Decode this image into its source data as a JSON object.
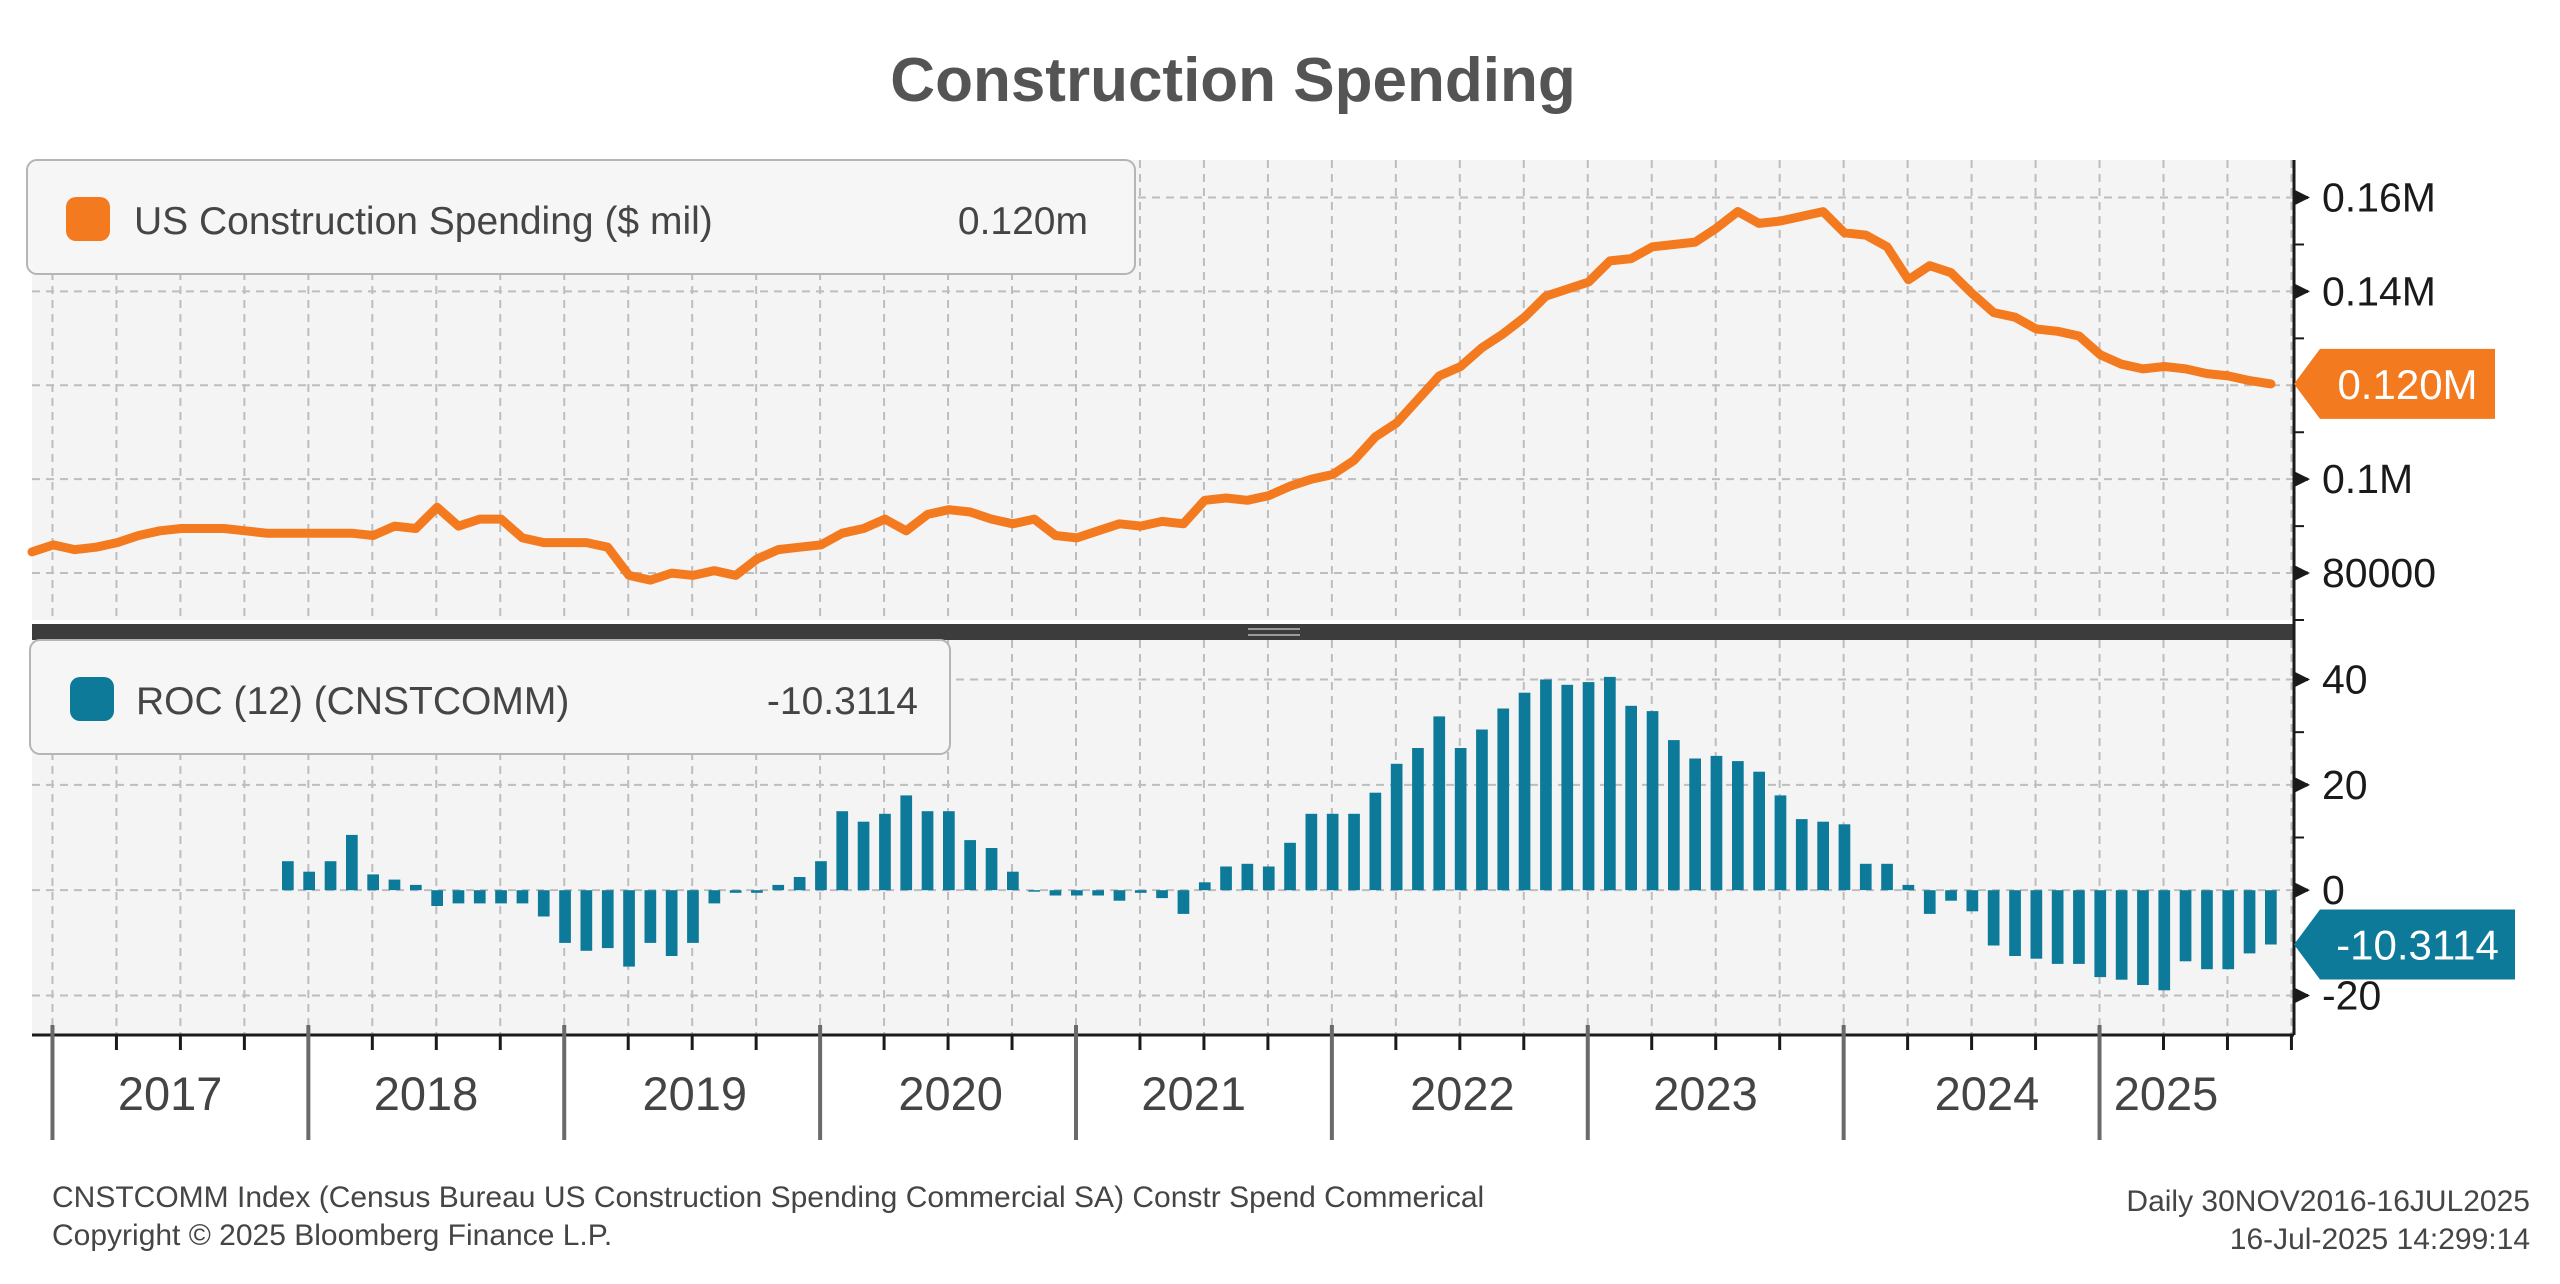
{
  "colors": {
    "orange": "#F47A20",
    "teal": "#0E7A9A",
    "grid": "#bdbdbd",
    "panel": "#f4f4f4"
  },
  "chart_data": [
    {
      "type": "line",
      "title": "Construction Spending",
      "series_name": "US Construction Spending ($ mil)",
      "legend_value": "0.120m",
      "last_value_tag": "0.120M",
      "y_tick_labels": [
        "0.16M",
        "0.14M",
        "0.1M",
        "80000"
      ],
      "y_tick_values": [
        160000,
        140000,
        100000,
        80000
      ],
      "ylim": [
        70000,
        168000
      ],
      "x_start": 2016.91,
      "x_step": 0.08333,
      "values": [
        84500,
        86000,
        85000,
        85500,
        86500,
        88000,
        89000,
        89500,
        89500,
        89500,
        89000,
        88500,
        88500,
        88500,
        88500,
        88500,
        88000,
        90000,
        89500,
        94000,
        90000,
        91500,
        91500,
        87500,
        86500,
        86500,
        86500,
        85500,
        79500,
        78500,
        80000,
        79500,
        80500,
        79500,
        83000,
        85000,
        85500,
        86000,
        88500,
        89500,
        91500,
        89000,
        92500,
        93500,
        93000,
        91500,
        90500,
        91500,
        88000,
        87500,
        89000,
        90500,
        90000,
        91000,
        90500,
        95500,
        96000,
        95500,
        96500,
        98500,
        100000,
        101000,
        104000,
        109000,
        112000,
        117000,
        122000,
        124000,
        128000,
        131000,
        134500,
        139000,
        140500,
        142000,
        146500,
        147000,
        149500,
        150000,
        150500,
        153500,
        157000,
        154500,
        155000,
        156000,
        157000,
        152500,
        152000,
        149500,
        142500,
        145500,
        144000,
        139500,
        135500,
        134500,
        132000,
        131500,
        130500,
        126500,
        124500,
        123500,
        124000,
        123500,
        122500,
        122000,
        121000,
        120300
      ],
      "current_value": 120300
    },
    {
      "type": "bar",
      "series_name": "ROC (12)  (CNSTCOMM)",
      "legend_value": "-10.3114",
      "last_value_tag": "-10.3114",
      "y_tick_labels": [
        "40",
        "20",
        "0",
        "-20"
      ],
      "y_tick_values": [
        40,
        20,
        0,
        -20
      ],
      "ylim": [
        -27.5,
        47.5
      ],
      "x_start": 2017.91,
      "x_step": 0.08333,
      "values": [
        5.5,
        3.5,
        5.5,
        10.5,
        3,
        2,
        1,
        -3,
        -2.5,
        -2.5,
        -2.5,
        -2.5,
        -5,
        -10,
        -11.5,
        -11,
        -14.5,
        -10,
        -12.5,
        -10,
        -2.5,
        -0.5,
        -0.5,
        1,
        2.5,
        5.5,
        15,
        13,
        14.5,
        18,
        15,
        15,
        9.5,
        8,
        3.5,
        0,
        -1,
        -1,
        -1,
        -2,
        -0.5,
        -1.5,
        -4.5,
        1.5,
        4.5,
        5,
        4.5,
        9,
        14.5,
        14.5,
        14.5,
        18.5,
        24,
        27,
        33,
        27,
        30.5,
        34.5,
        37.5,
        40,
        39,
        39.5,
        40.5,
        35,
        34,
        28.5,
        25,
        25.5,
        24.5,
        22.5,
        18,
        13.5,
        13,
        12.5,
        5,
        5,
        1,
        -4.5,
        -2,
        -4,
        -10.5,
        -12.5,
        -13,
        -14,
        -14,
        -16.5,
        -17,
        -18,
        -19,
        -13.5,
        -15,
        -15,
        -12,
        -10.3114
      ],
      "current_value": -10.3114
    }
  ],
  "x_axis": {
    "year_labels": [
      "2017",
      "2018",
      "2019",
      "2020",
      "2021",
      "2022",
      "2023",
      "2024",
      "2025"
    ],
    "year_positions": [
      2017.45,
      2018.45,
      2019.5,
      2020.5,
      2021.45,
      2022.5,
      2023.45,
      2024.55,
      2025.25
    ],
    "major_ticks": [
      2016.99,
      2017.99,
      2018.99,
      2019.99,
      2020.99,
      2021.99,
      2022.99,
      2023.99,
      2024.99
    ],
    "xlim": [
      2016.91,
      2025.75
    ]
  },
  "footer": {
    "description": "CNSTCOMM Index (Census Bureau US Construction Spending Commercial SA) Constr Spend Commerical",
    "copyright": "Copyright © 2025 Bloomberg Finance L.P.",
    "range": "Daily 30NOV2016-16JUL2025",
    "timestamp": "16-Jul-2025 14:299:14"
  }
}
